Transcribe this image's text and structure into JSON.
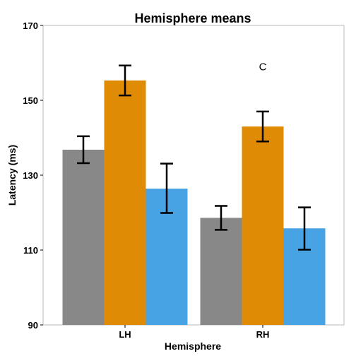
{
  "chart_data": {
    "type": "bar",
    "title": "Hemisphere means",
    "xlabel": "Hemisphere",
    "ylabel": "Latency (ms)",
    "categories": [
      "LH",
      "RH"
    ],
    "ylim": [
      90,
      170
    ],
    "yticks": [
      90,
      110,
      130,
      150,
      170
    ],
    "grid": false,
    "legend": "none",
    "series": [
      {
        "values": [
          136.8,
          118.6
        ],
        "err_low": [
          133.2,
          115.4
        ],
        "err_high": [
          140.4,
          121.8
        ],
        "color": "#888888"
      },
      {
        "values": [
          155.3,
          143.0
        ],
        "err_low": [
          151.3,
          139.0
        ],
        "err_high": [
          159.3,
          147.0
        ],
        "color": "#E08B05"
      },
      {
        "values": [
          126.4,
          115.8
        ],
        "err_low": [
          119.9,
          110.1
        ],
        "err_high": [
          133.1,
          121.4
        ],
        "color": "#47A3E3"
      }
    ],
    "annotations": [
      {
        "text": "C",
        "category": "RH",
        "y": 159
      }
    ]
  }
}
